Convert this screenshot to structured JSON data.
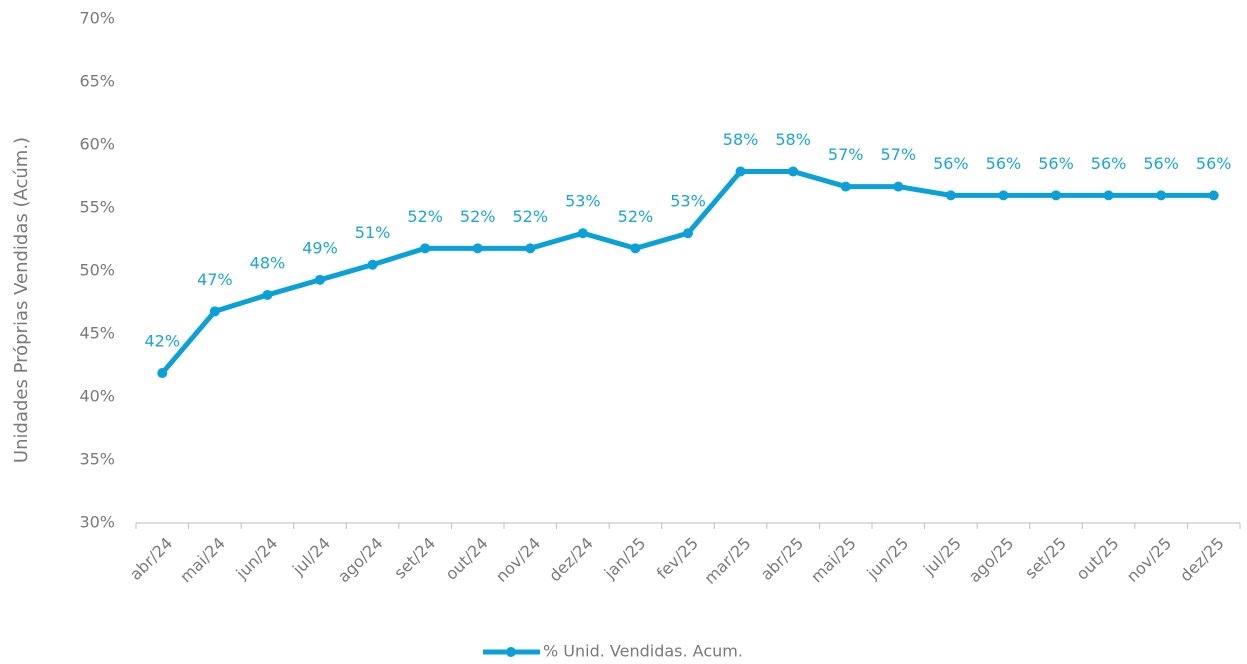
{
  "chart_data": {
    "type": "line",
    "ylabel": "Unidades Próprias Vendidas (Acúm.)",
    "categories": [
      "abr/24",
      "mai/24",
      "jun/24",
      "jul/24",
      "ago/24",
      "set/24",
      "out/24",
      "nov/24",
      "dez/24",
      "jan/25",
      "fev/25",
      "mar/25",
      "abr/25",
      "mai/25",
      "jun/25",
      "jul/25",
      "ago/25",
      "set/25",
      "out/25",
      "nov/25",
      "dez/25"
    ],
    "series": [
      {
        "name": "% Unid. Vendidas. Acum.",
        "color": "#0ba0d8",
        "values": [
          41.9,
          46.8,
          48.1,
          49.3,
          50.5,
          51.8,
          51.8,
          51.8,
          53.0,
          51.8,
          53.0,
          57.9,
          57.9,
          56.7,
          56.7,
          56.0,
          56.0,
          56.0,
          56.0,
          56.0,
          56.0
        ],
        "value_labels": [
          "42%",
          "47%",
          "48%",
          "49%",
          "51%",
          "52%",
          "52%",
          "52%",
          "53%",
          "52%",
          "53%",
          "58%",
          "58%",
          "57%",
          "57%",
          "56%",
          "56%",
          "56%",
          "56%",
          "56%",
          "56%"
        ]
      }
    ],
    "ylim": [
      30,
      70
    ],
    "yticks": [
      {
        "value": 30,
        "label": "30%"
      },
      {
        "value": 35,
        "label": "35%"
      },
      {
        "value": 40,
        "label": "40%"
      },
      {
        "value": 45,
        "label": "45%"
      },
      {
        "value": 50,
        "label": "50%"
      },
      {
        "value": 55,
        "label": "55%"
      },
      {
        "value": 60,
        "label": "60%"
      },
      {
        "value": 65,
        "label": "65%"
      },
      {
        "value": 70,
        "label": "70%"
      }
    ],
    "legend": "bottom"
  }
}
